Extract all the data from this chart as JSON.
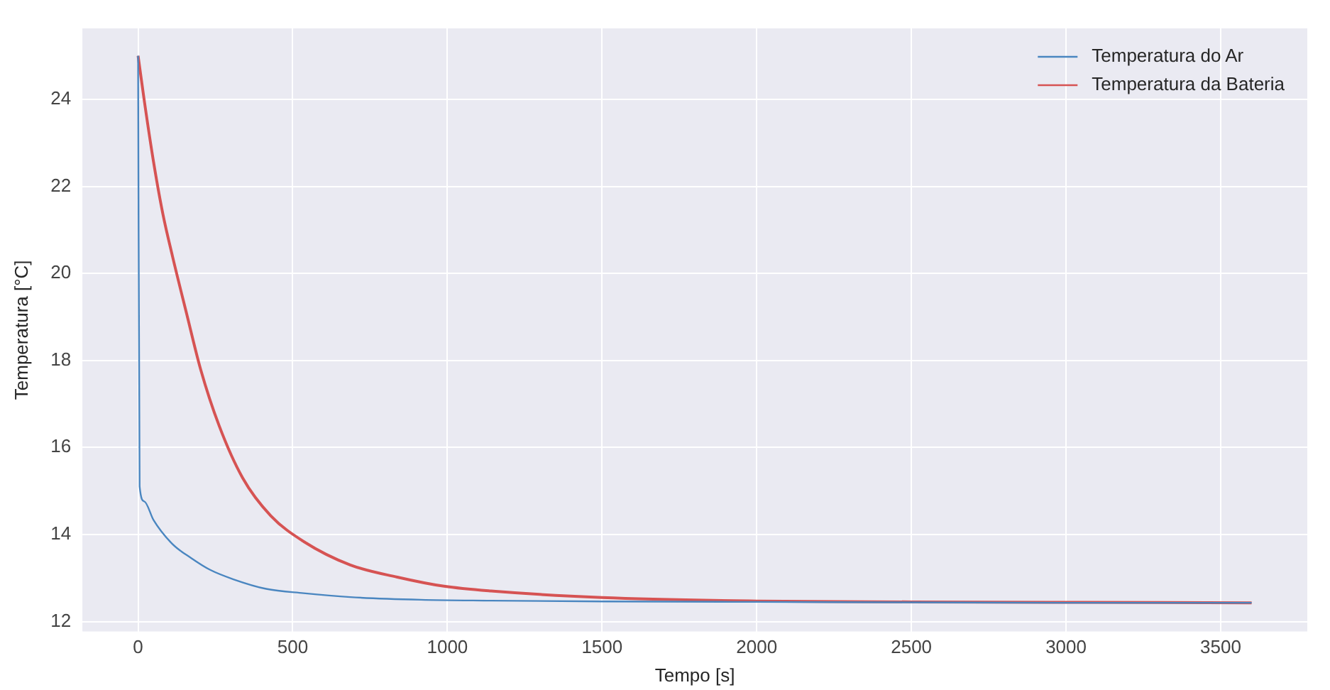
{
  "chart_data": {
    "type": "line",
    "xlabel": "Tempo [s]",
    "ylabel": "Temperatura [°C]",
    "xlim": [
      -180,
      3780
    ],
    "ylim": [
      11.77,
      25.63
    ],
    "xticks": [
      0,
      500,
      1000,
      1500,
      2000,
      2500,
      3000,
      3500
    ],
    "yticks": [
      12,
      14,
      16,
      18,
      20,
      22,
      24
    ],
    "grid": true,
    "legend": "top right",
    "marker": "none",
    "line_style": "solid",
    "series": [
      {
        "name": "Temperatura do Ar",
        "color": "#4a86c0",
        "x": [
          0,
          5,
          20,
          50,
          111,
          171,
          232,
          308,
          414,
          535,
          686,
          914,
          1141,
          1500,
          2000,
          2500,
          3000,
          3600
        ],
        "values": [
          25,
          15.1,
          14.76,
          14.33,
          13.78,
          13.46,
          13.19,
          12.97,
          12.75,
          12.65,
          12.56,
          12.5,
          12.48,
          12.46,
          12.45,
          12.44,
          12.43,
          12.43
        ]
      },
      {
        "name": "Temperatura da Bateria",
        "color": "#d65353",
        "x": [
          0,
          20,
          50,
          80,
          111,
          156,
          202,
          262,
          338,
          429,
          535,
          686,
          838,
          989,
          1141,
          1500,
          2000,
          2500,
          3000,
          3600
        ],
        "values": [
          25,
          23.97,
          22.56,
          21.37,
          20.4,
          19.1,
          17.8,
          16.5,
          15.3,
          14.43,
          13.84,
          13.3,
          13.02,
          12.81,
          12.7,
          12.55,
          12.47,
          12.45,
          12.44,
          12.43
        ]
      }
    ]
  }
}
